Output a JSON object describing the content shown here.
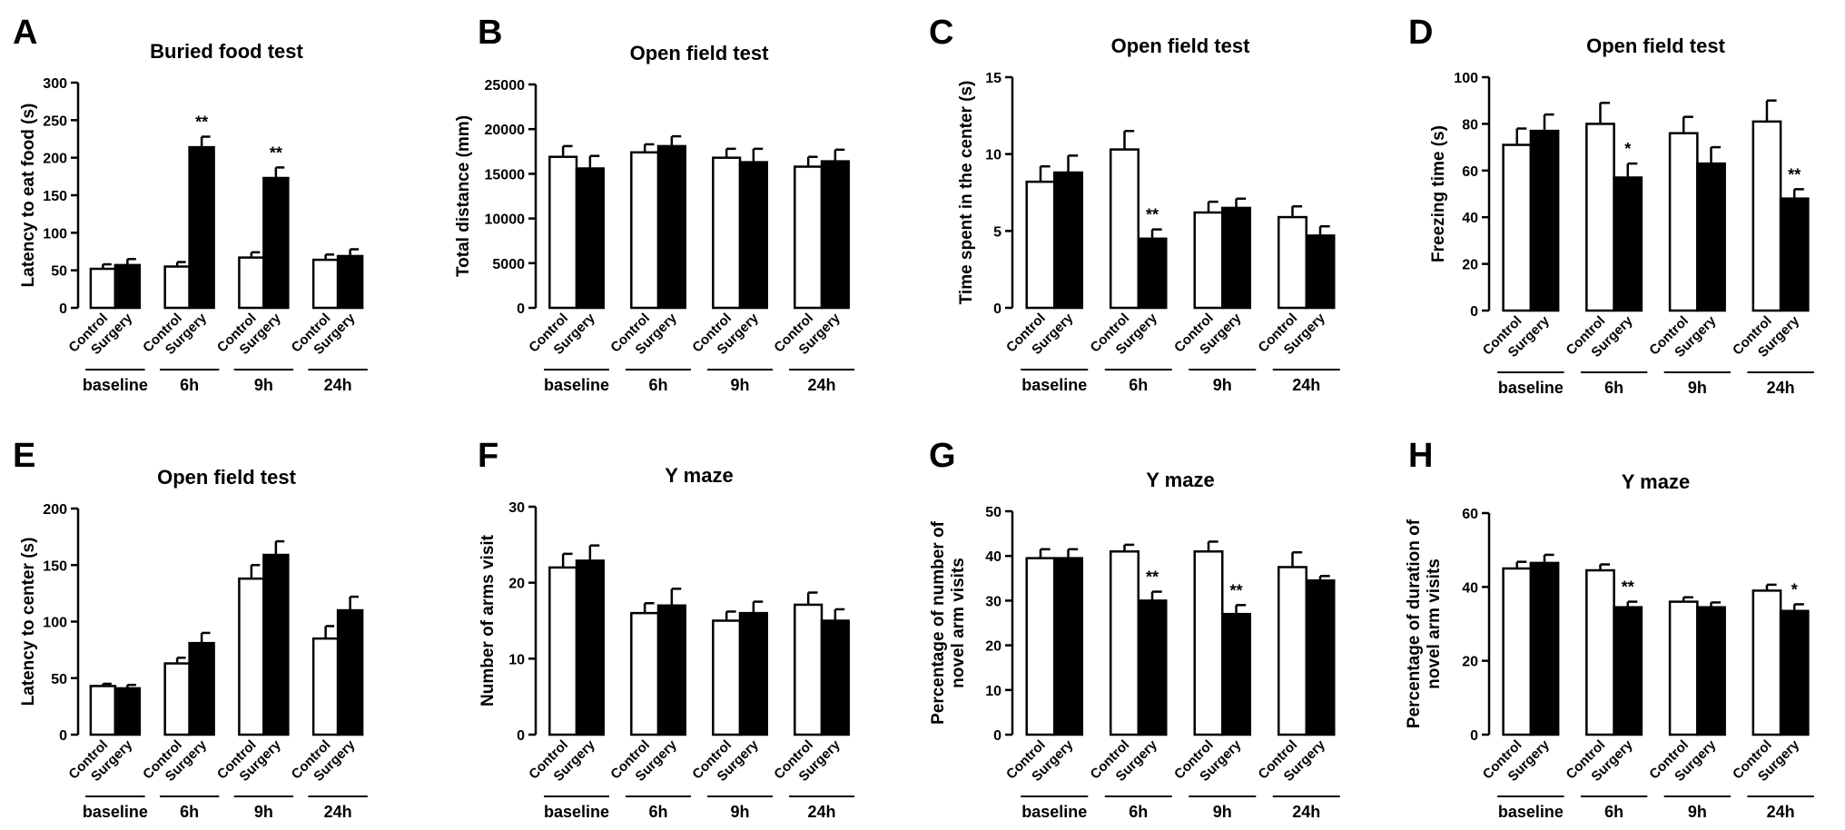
{
  "figure": {
    "colors": {
      "control": "#ffffff",
      "surgery": "#000000",
      "axis": "#000000"
    },
    "group_labels": [
      "Control",
      "Surgery"
    ],
    "panels": [
      {
        "letter": "A",
        "title": "Buried food test",
        "ylabel": "Latency to eat food (s)",
        "ymax": 300,
        "yticks": [
          0,
          50,
          100,
          150,
          200,
          250,
          300
        ],
        "categories": [
          "baseline",
          "6h",
          "9h",
          "24h"
        ],
        "control": [
          52,
          55,
          67,
          64
        ],
        "control_err": [
          6,
          6,
          7,
          7
        ],
        "surgery": [
          57,
          214,
          173,
          69
        ],
        "surgery_err": [
          8,
          14,
          14,
          9
        ],
        "significance": [
          "",
          "**",
          "**",
          ""
        ]
      },
      {
        "letter": "B",
        "title": "Open field test",
        "ylabel": "Total distance (mm)",
        "ymax": 25000,
        "yticks": [
          0,
          5000,
          10000,
          15000,
          20000,
          25000
        ],
        "categories": [
          "baseline",
          "6h",
          "9h",
          "24h"
        ],
        "control": [
          16900,
          17400,
          16800,
          15800
        ],
        "control_err": [
          1200,
          900,
          1000,
          1100
        ],
        "surgery": [
          15600,
          18100,
          16300,
          16400
        ],
        "surgery_err": [
          1400,
          1100,
          1500,
          1300
        ],
        "significance": [
          "",
          "",
          "",
          ""
        ]
      },
      {
        "letter": "C",
        "title": "Open field test",
        "ylabel": "Time spent in the center (s)",
        "ymax": 15,
        "yticks": [
          0,
          5,
          10,
          15
        ],
        "categories": [
          "baseline",
          "6h",
          "9h",
          "24h"
        ],
        "control": [
          8.2,
          10.3,
          6.2,
          5.9
        ],
        "control_err": [
          1.0,
          1.2,
          0.7,
          0.7
        ],
        "surgery": [
          8.8,
          4.5,
          6.5,
          4.7
        ],
        "surgery_err": [
          1.1,
          0.6,
          0.6,
          0.6
        ],
        "significance": [
          "",
          "**",
          "",
          ""
        ]
      },
      {
        "letter": "D",
        "title": "Open field test",
        "ylabel": "Freezing time (s)",
        "ymax": 100,
        "yticks": [
          0,
          20,
          40,
          60,
          80,
          100
        ],
        "categories": [
          "baseline",
          "6h",
          "9h",
          "24h"
        ],
        "control": [
          71,
          80,
          76,
          81
        ],
        "control_err": [
          7,
          9,
          7,
          9
        ],
        "surgery": [
          77,
          57,
          63,
          48
        ],
        "surgery_err": [
          7,
          6,
          7,
          4
        ],
        "significance": [
          "",
          "*",
          "",
          "**"
        ]
      },
      {
        "letter": "E",
        "title": "Open field test",
        "ylabel": "Latency to center (s)",
        "ymax": 200,
        "yticks": [
          0,
          50,
          100,
          150,
          200
        ],
        "categories": [
          "baseline",
          "6h",
          "9h",
          "24h"
        ],
        "control": [
          43,
          63,
          138,
          85
        ],
        "control_err": [
          2,
          5,
          12,
          11
        ],
        "surgery": [
          41,
          81,
          159,
          110
        ],
        "surgery_err": [
          3,
          9,
          12,
          12
        ],
        "significance": [
          "",
          "",
          "",
          ""
        ]
      },
      {
        "letter": "F",
        "title": "Y maze",
        "ylabel": "Number of arms visit",
        "ymax": 30,
        "yticks": [
          0,
          10,
          20,
          30
        ],
        "categories": [
          "baseline",
          "6h",
          "9h",
          "24h"
        ],
        "control": [
          22,
          16,
          15,
          17.1
        ],
        "control_err": [
          1.8,
          1.3,
          1.2,
          1.6
        ],
        "surgery": [
          22.9,
          17,
          16,
          15
        ],
        "surgery_err": [
          2.0,
          2.2,
          1.5,
          1.5
        ],
        "significance": [
          "",
          "",
          "",
          ""
        ]
      },
      {
        "letter": "G",
        "title": "Y maze",
        "ylabel": [
          "Percentage of number of",
          "novel arm visits"
        ],
        "ymax": 50,
        "yticks": [
          0,
          10,
          20,
          30,
          40,
          50
        ],
        "categories": [
          "baseline",
          "6h",
          "9h",
          "24h"
        ],
        "control": [
          39.5,
          41,
          41,
          37.5
        ],
        "control_err": [
          2.0,
          1.5,
          2.2,
          3.3
        ],
        "surgery": [
          39.5,
          30,
          27,
          34.5
        ],
        "surgery_err": [
          2.0,
          2.0,
          2.0,
          1.0
        ],
        "significance": [
          "",
          "**",
          "**",
          ""
        ]
      },
      {
        "letter": "H",
        "title": "Y maze",
        "ylabel": [
          "Percentage of duration of",
          "novel arm visits"
        ],
        "ymax": 60,
        "yticks": [
          0,
          20,
          40,
          60
        ],
        "categories": [
          "baseline",
          "6h",
          "9h",
          "24h"
        ],
        "control": [
          45,
          44.5,
          36,
          39
        ],
        "control_err": [
          1.8,
          1.6,
          1.2,
          1.6
        ],
        "surgery": [
          46.5,
          34.5,
          34.5,
          33.5
        ],
        "surgery_err": [
          2.2,
          1.5,
          1.3,
          1.8
        ],
        "significance": [
          "",
          "**",
          "",
          "*"
        ]
      }
    ]
  },
  "chart_data": [
    {
      "type": "bar",
      "title": "Buried food test",
      "ylabel": "Latency to eat food (s)",
      "xlabel": "",
      "categories": [
        "baseline",
        "6h",
        "9h",
        "24h"
      ],
      "ylim": [
        0,
        300
      ],
      "series": [
        {
          "name": "Control",
          "values": [
            52,
            55,
            67,
            64
          ],
          "errors": [
            6,
            6,
            7,
            7
          ]
        },
        {
          "name": "Surgery",
          "values": [
            57,
            214,
            173,
            69
          ],
          "errors": [
            8,
            14,
            14,
            9
          ]
        }
      ],
      "annotations": [
        "6h: **",
        "9h: **"
      ]
    },
    {
      "type": "bar",
      "title": "Open field test",
      "ylabel": "Total distance (mm)",
      "xlabel": "",
      "categories": [
        "baseline",
        "6h",
        "9h",
        "24h"
      ],
      "ylim": [
        0,
        25000
      ],
      "series": [
        {
          "name": "Control",
          "values": [
            16900,
            17400,
            16800,
            15800
          ],
          "errors": [
            1200,
            900,
            1000,
            1100
          ]
        },
        {
          "name": "Surgery",
          "values": [
            15600,
            18100,
            16300,
            16400
          ],
          "errors": [
            1400,
            1100,
            1500,
            1300
          ]
        }
      ]
    },
    {
      "type": "bar",
      "title": "Open field test",
      "ylabel": "Time spent in the center (s)",
      "xlabel": "",
      "categories": [
        "baseline",
        "6h",
        "9h",
        "24h"
      ],
      "ylim": [
        0,
        15
      ],
      "series": [
        {
          "name": "Control",
          "values": [
            8.2,
            10.3,
            6.2,
            5.9
          ],
          "errors": [
            1.0,
            1.2,
            0.7,
            0.7
          ]
        },
        {
          "name": "Surgery",
          "values": [
            8.8,
            4.5,
            6.5,
            4.7
          ],
          "errors": [
            1.1,
            0.6,
            0.6,
            0.6
          ]
        }
      ],
      "annotations": [
        "6h: **"
      ]
    },
    {
      "type": "bar",
      "title": "Open field test",
      "ylabel": "Freezing time (s)",
      "xlabel": "",
      "categories": [
        "baseline",
        "6h",
        "9h",
        "24h"
      ],
      "ylim": [
        0,
        100
      ],
      "series": [
        {
          "name": "Control",
          "values": [
            71,
            80,
            76,
            81
          ],
          "errors": [
            7,
            9,
            7,
            9
          ]
        },
        {
          "name": "Surgery",
          "values": [
            77,
            57,
            63,
            48
          ],
          "errors": [
            7,
            6,
            7,
            4
          ]
        }
      ],
      "annotations": [
        "6h: *",
        "24h: **"
      ]
    },
    {
      "type": "bar",
      "title": "Open field test",
      "ylabel": "Latency to center (s)",
      "xlabel": "",
      "categories": [
        "baseline",
        "6h",
        "9h",
        "24h"
      ],
      "ylim": [
        0,
        200
      ],
      "series": [
        {
          "name": "Control",
          "values": [
            43,
            63,
            138,
            85
          ],
          "errors": [
            2,
            5,
            12,
            11
          ]
        },
        {
          "name": "Surgery",
          "values": [
            41,
            81,
            159,
            110
          ],
          "errors": [
            3,
            9,
            12,
            12
          ]
        }
      ]
    },
    {
      "type": "bar",
      "title": "Y maze",
      "ylabel": "Number of arms visit",
      "xlabel": "",
      "categories": [
        "baseline",
        "6h",
        "9h",
        "24h"
      ],
      "ylim": [
        0,
        30
      ],
      "series": [
        {
          "name": "Control",
          "values": [
            22,
            16,
            15,
            17.1
          ],
          "errors": [
            1.8,
            1.3,
            1.2,
            1.6
          ]
        },
        {
          "name": "Surgery",
          "values": [
            22.9,
            17,
            16,
            15
          ],
          "errors": [
            2.0,
            2.2,
            1.5,
            1.5
          ]
        }
      ]
    },
    {
      "type": "bar",
      "title": "Y maze",
      "ylabel": "Percentage of number of novel arm visits",
      "xlabel": "",
      "categories": [
        "baseline",
        "6h",
        "9h",
        "24h"
      ],
      "ylim": [
        0,
        50
      ],
      "series": [
        {
          "name": "Control",
          "values": [
            39.5,
            41,
            41,
            37.5
          ],
          "errors": [
            2.0,
            1.5,
            2.2,
            3.3
          ]
        },
        {
          "name": "Surgery",
          "values": [
            39.5,
            30,
            27,
            34.5
          ],
          "errors": [
            2.0,
            2.0,
            2.0,
            1.0
          ]
        }
      ],
      "annotations": [
        "6h: **",
        "9h: **"
      ]
    },
    {
      "type": "bar",
      "title": "Y maze",
      "ylabel": "Percentage of duration of novel arm visits",
      "xlabel": "",
      "categories": [
        "baseline",
        "6h",
        "9h",
        "24h"
      ],
      "ylim": [
        0,
        60
      ],
      "series": [
        {
          "name": "Control",
          "values": [
            45,
            44.5,
            36,
            39
          ],
          "errors": [
            1.8,
            1.6,
            1.2,
            1.6
          ]
        },
        {
          "name": "Surgery",
          "values": [
            46.5,
            34.5,
            34.5,
            33.5
          ],
          "errors": [
            2.2,
            1.5,
            1.3,
            1.8
          ]
        }
      ],
      "annotations": [
        "6h: **",
        "24h: *"
      ]
    }
  ]
}
